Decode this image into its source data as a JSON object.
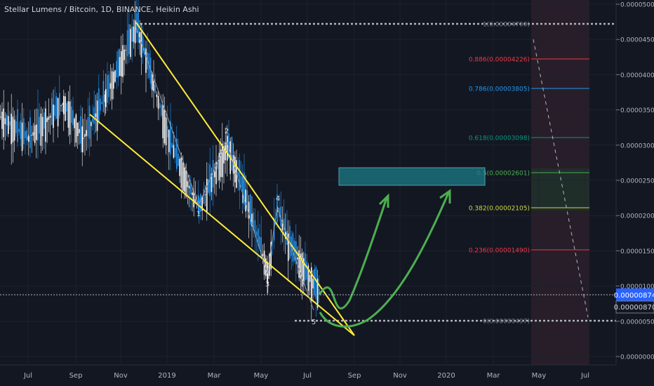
{
  "chart_data": {
    "type": "candlestick",
    "title": "Stellar Lumens / Bitcoin, 1D, BINANCE, Heikin Ashi",
    "ylim": [
      0,
      5e-06
    ],
    "y_ticks": [
      "0.00005000",
      "0.00004500",
      "0.00004000",
      "0.00003500",
      "0.00003000",
      "0.00002500",
      "0.00002000",
      "0.00001500",
      "0.00001000",
      "0.00000500",
      "0.00000000"
    ],
    "x_ticks": [
      "Jul",
      "Sep",
      "Nov",
      "2019",
      "Mar",
      "May",
      "Jul",
      "Sep",
      "Nov",
      "2020",
      "Mar",
      "May",
      "Jul"
    ],
    "current_price_label": "0.00000874",
    "secondary_price_label": "0.00000870",
    "price_path": [
      {
        "t": "2018-06",
        "close": 3.4e-06
      },
      {
        "t": "2018-07",
        "close": 3.1e-06
      },
      {
        "t": "2018-08",
        "close": 3.6e-06
      },
      {
        "t": "2018-09",
        "close": 3.1e-06
      },
      {
        "t": "2018-10",
        "close": 3.7e-06
      },
      {
        "t": "2018-11",
        "close": 4.7e-06
      },
      {
        "t": "2018-12",
        "close": 3.1e-06
      },
      {
        "t": "2019-01",
        "close": 2.6e-06
      },
      {
        "t": "2019-02",
        "close": 2.1e-06
      },
      {
        "t": "2019-03",
        "close": 3e-06
      },
      {
        "t": "2019-04",
        "close": 2.4e-06
      },
      {
        "t": "2019-05",
        "close": 1.2e-06
      },
      {
        "t": "2019-05b",
        "close": 2.1e-06
      },
      {
        "t": "2019-06",
        "close": 1.6e-06
      },
      {
        "t": "2019-07",
        "close": 9e-07
      }
    ],
    "fibonacci": [
      {
        "ratio": "1",
        "label": "1(0.00004700)",
        "color": "#787b86"
      },
      {
        "ratio": "0.886",
        "label": "0.886(0.00004226)",
        "color": "#f23645"
      },
      {
        "ratio": "0.786",
        "label": "0.786(0.00003805)",
        "color": "#2196f3"
      },
      {
        "ratio": "0.618",
        "label": "0.618(0.00003098)",
        "color": "#089981"
      },
      {
        "ratio": "0.5",
        "label": "0.5(0.00002601)",
        "color": "#4caf50"
      },
      {
        "ratio": "0.382",
        "label": "0.382(0.00002105)",
        "color": "#cddc39"
      },
      {
        "ratio": "0.236",
        "label": "0.236(0.00001490)",
        "color": "#f23645"
      },
      {
        "ratio": "0",
        "label": "0(0.00000497)",
        "color": "#787b86"
      }
    ],
    "wave_labels": [
      "1",
      "2",
      "3",
      "4",
      "5"
    ],
    "annotations": [
      "descending wedge",
      "target box",
      "projected rally arrows"
    ]
  }
}
